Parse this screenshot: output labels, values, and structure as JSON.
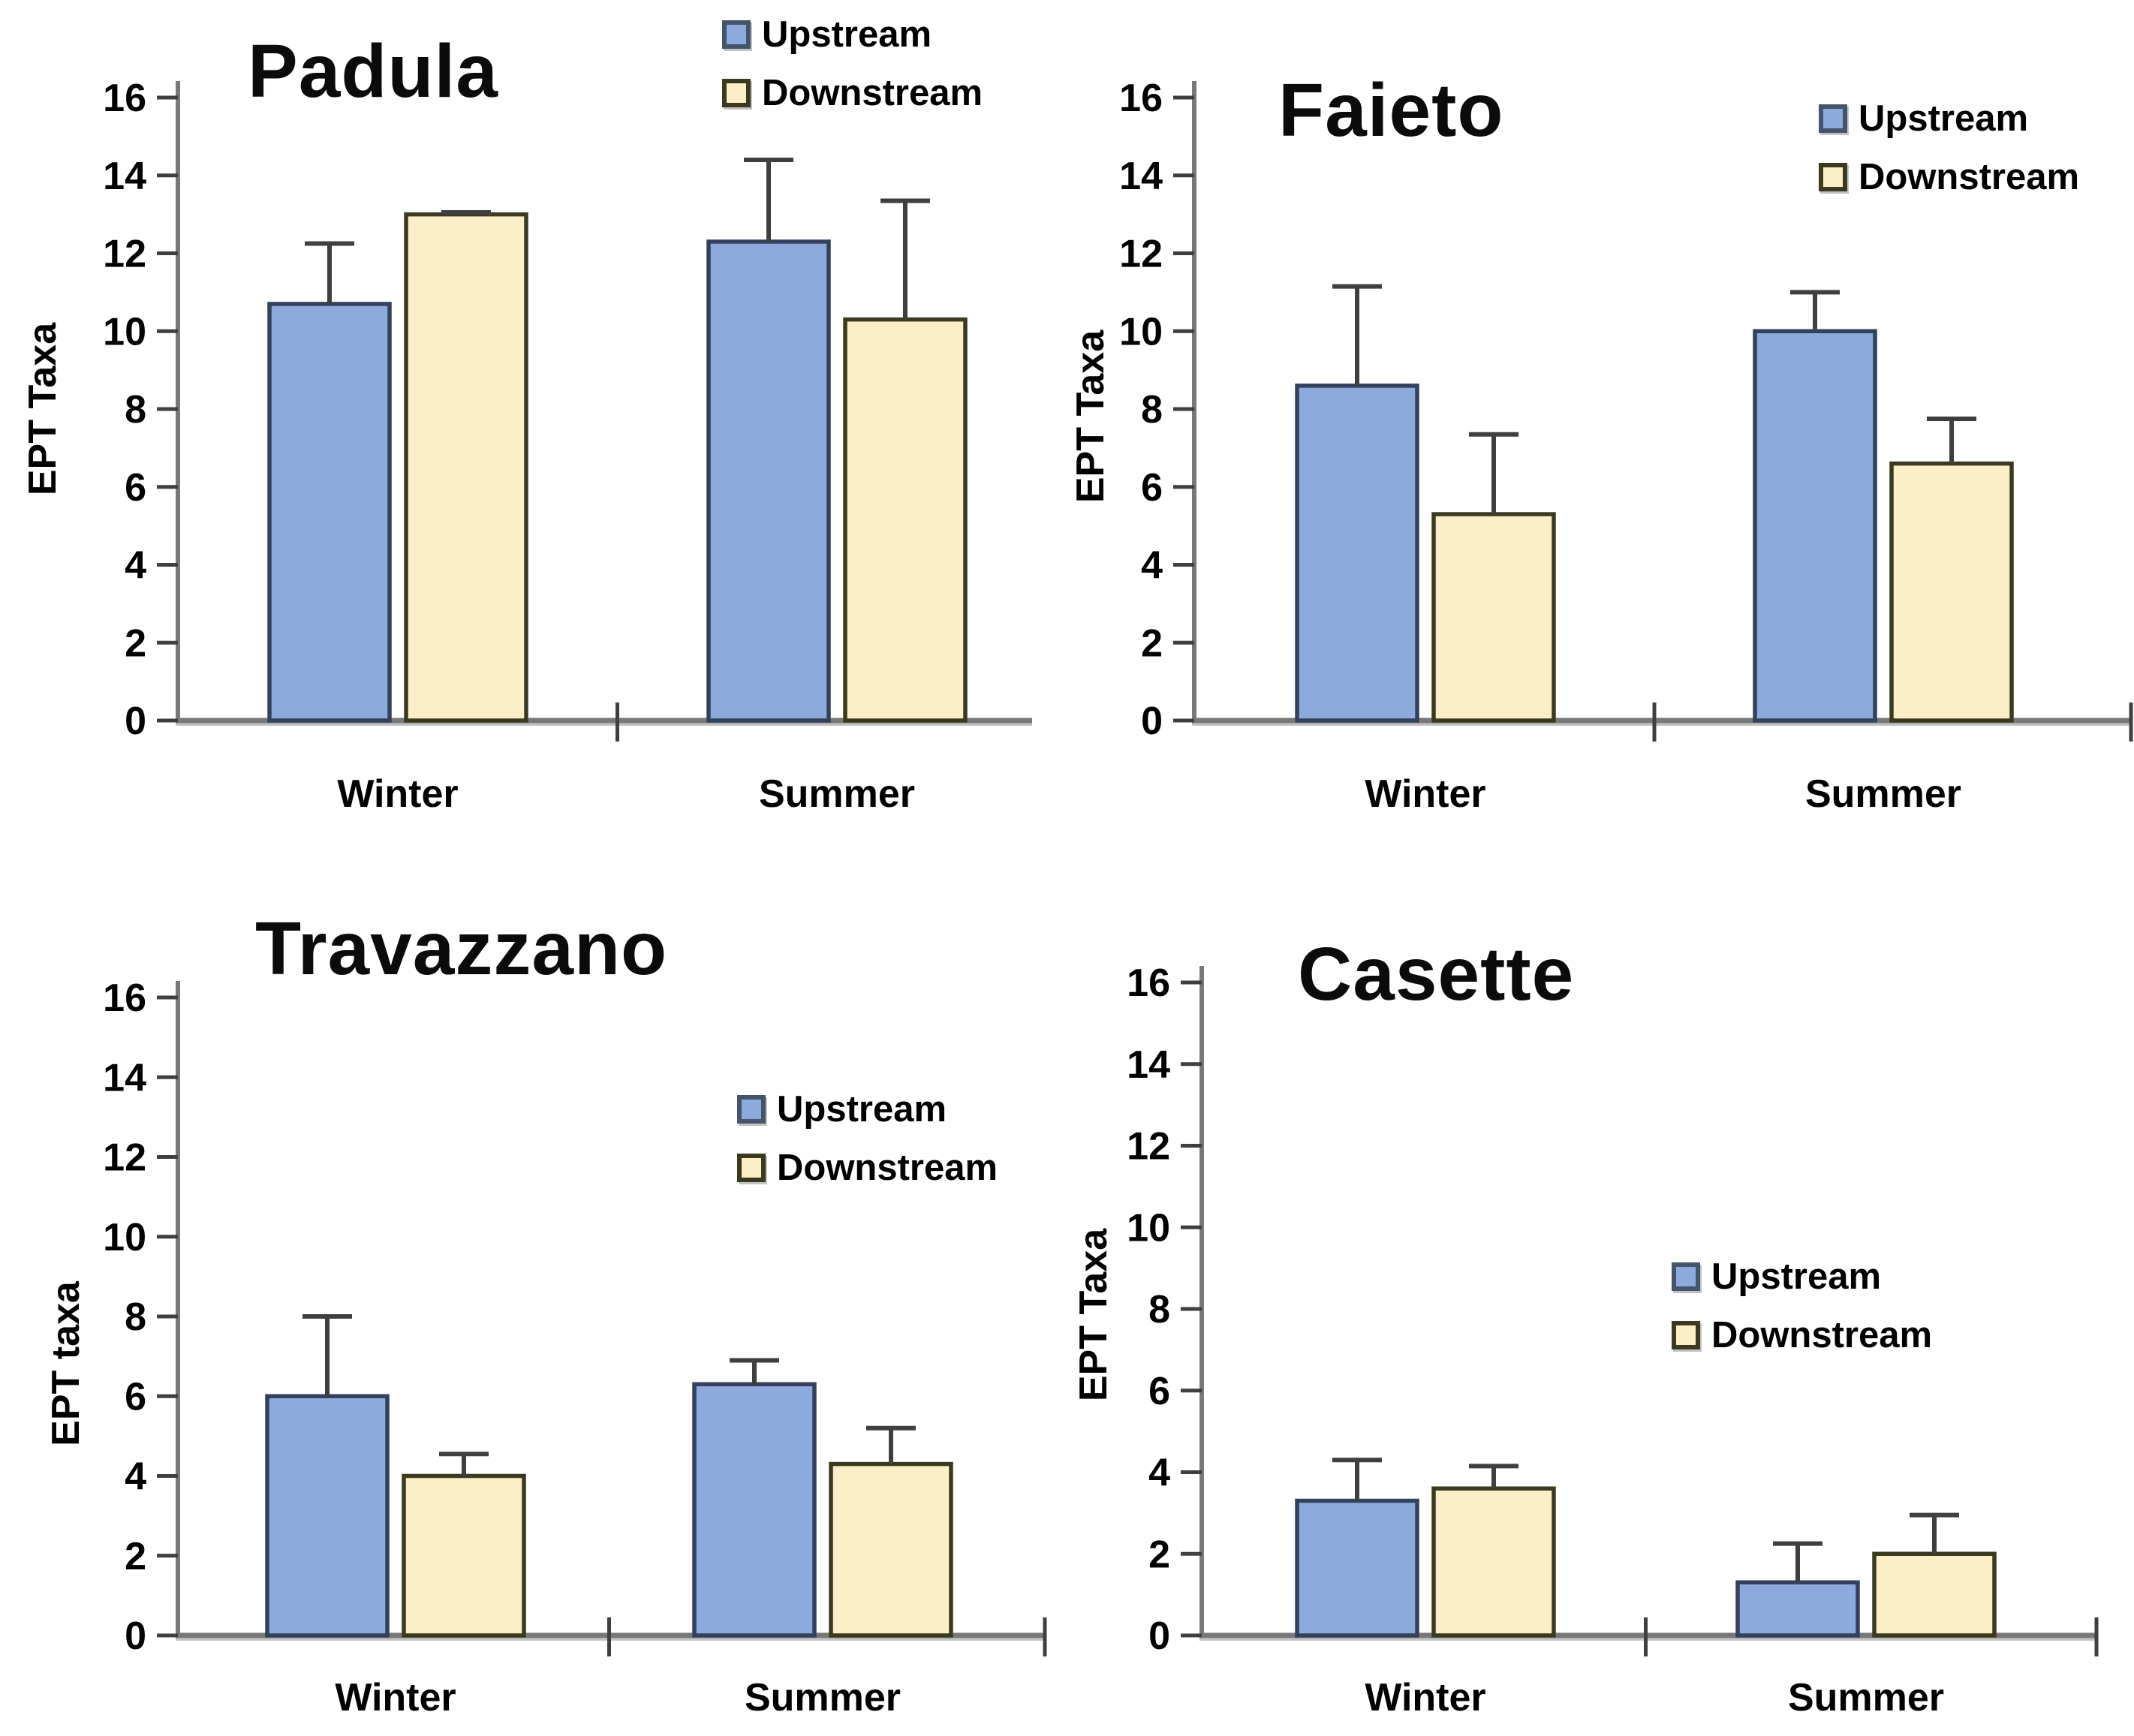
{
  "figure": {
    "legend": {
      "upstream_label": "Upstream",
      "downstream_label": "Downstream"
    },
    "colors": {
      "upstream_fill": "#8EA9DB",
      "upstream_border": "#33415C",
      "downstream_fill": "#FCEFC7",
      "downstream_border": "#3B3A20",
      "axis_line": "#787878",
      "axis_line_light": "#C3C3C3",
      "tick": "#3F3F3F",
      "error_bar": "#3F3F3F",
      "text": "#000000"
    }
  },
  "chart_data": [
    {
      "type": "bar",
      "title": "Padula",
      "ylabel": "EPT Taxa",
      "categories": [
        "Winter",
        "Summer"
      ],
      "series": [
        {
          "name": "Upstream",
          "values": [
            10.7,
            12.3
          ],
          "errors": [
            1.55,
            2.1
          ]
        },
        {
          "name": "Downstream",
          "values": [
            13.0,
            10.3
          ],
          "errors": [
            0.05,
            3.05
          ]
        }
      ],
      "ylim": [
        0,
        16
      ],
      "ytick_step": 2,
      "grid": false,
      "legend_position": "top-right-outside"
    },
    {
      "type": "bar",
      "title": "Faieto",
      "ylabel": "EPT Taxa",
      "categories": [
        "Winter",
        "Summer"
      ],
      "series": [
        {
          "name": "Upstream",
          "values": [
            8.6,
            10.0
          ],
          "errors": [
            2.55,
            1.0
          ]
        },
        {
          "name": "Downstream",
          "values": [
            5.3,
            6.6
          ],
          "errors": [
            2.05,
            1.15
          ]
        }
      ],
      "ylim": [
        0,
        16
      ],
      "ytick_step": 2,
      "grid": false,
      "legend_position": "upper-right-inside"
    },
    {
      "type": "bar",
      "title": "Travazzano",
      "ylabel": "EPT taxa",
      "categories": [
        "Winter",
        "Summer"
      ],
      "series": [
        {
          "name": "Upstream",
          "values": [
            6.0,
            6.3
          ],
          "errors": [
            2.0,
            0.6
          ]
        },
        {
          "name": "Downstream",
          "values": [
            4.0,
            4.3
          ],
          "errors": [
            0.55,
            0.9
          ]
        }
      ],
      "ylim": [
        0,
        16
      ],
      "ytick_step": 2,
      "grid": false,
      "legend_position": "middle-right-inside"
    },
    {
      "type": "bar",
      "title": "Casette",
      "ylabel": "EPT Taxa",
      "categories": [
        "Winter",
        "Summer"
      ],
      "series": [
        {
          "name": "Upstream",
          "values": [
            3.3,
            1.3
          ],
          "errors": [
            1.0,
            0.95
          ]
        },
        {
          "name": "Downstream",
          "values": [
            3.6,
            2.0
          ],
          "errors": [
            0.55,
            0.95
          ]
        }
      ],
      "ylim": [
        0,
        16
      ],
      "ytick_step": 2,
      "grid": false,
      "legend_position": "middle-right-inside"
    }
  ]
}
